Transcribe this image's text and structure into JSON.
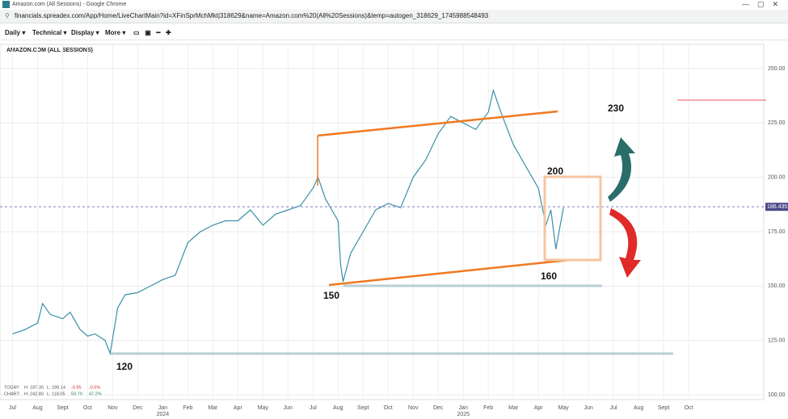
{
  "browser": {
    "window_title": "Amazon.com (All Sessions) - Google Chrome",
    "url": "financials.spreadex.com/App/Home/LiveChartMain?id=XFinSprMchMkt|318629&name=Amazon.com%20(All%20Sessions)&temp=autogen_318629_1745988548493"
  },
  "toolbar": [
    "Daily ▾",
    "Technical ▾",
    "Display ▾",
    "More ▾"
  ],
  "chart_data": {
    "type": "line",
    "title": "AMAZON.COM (ALL SESSIONS)",
    "x": [
      0,
      0.5,
      1,
      1.2,
      1.5,
      2,
      2.3,
      2.7,
      3,
      3.3,
      3.7,
      3.9,
      4.2,
      4.5,
      5,
      5.5,
      6,
      6.5,
      7,
      7.5,
      8,
      8.5,
      9,
      9.5,
      10,
      10.5,
      11,
      11.5,
      12,
      12.2,
      12.5,
      13,
      13.1,
      13.2,
      13.5,
      14,
      14.5,
      15,
      15.5,
      16,
      16.5,
      17,
      17.5,
      18,
      18.5,
      19,
      19.2,
      19.5,
      20,
      20.5,
      21,
      21.3,
      21.5,
      21.7,
      22
    ],
    "series": [
      {
        "name": "AMAZON.COM",
        "color": "#3a8fa8",
        "values": [
          128,
          130,
          133,
          142,
          137,
          135,
          138,
          130,
          127,
          128,
          125,
          119,
          140,
          146,
          147,
          150,
          153,
          155,
          170,
          175,
          178,
          180,
          180,
          185,
          178,
          183,
          185,
          187,
          195,
          200,
          190,
          180,
          160,
          152,
          165,
          175,
          185,
          188,
          186,
          200,
          208,
          220,
          228,
          225,
          222,
          230,
          240,
          230,
          215,
          205,
          195,
          178,
          185,
          167,
          186
        ]
      }
    ],
    "last_price": 186.435,
    "xlim": [
      -0.5,
      30
    ],
    "ylim": [
      97.8,
      261.1
    ],
    "yticks": [
      {
        "value": 100,
        "label": "100.00"
      },
      {
        "value": 125,
        "label": "125.00"
      },
      {
        "value": 150,
        "label": "150.00"
      },
      {
        "value": 175,
        "label": "175.00"
      },
      {
        "value": 200,
        "label": "200.00"
      },
      {
        "value": 225,
        "label": "225.00"
      },
      {
        "value": 250,
        "label": "250.00"
      }
    ],
    "xticks": [
      {
        "value": 0,
        "label": "Jul"
      },
      {
        "value": 1,
        "label": "Aug"
      },
      {
        "value": 2,
        "label": "Sept"
      },
      {
        "value": 3,
        "label": "Oct"
      },
      {
        "value": 4,
        "label": "Nov"
      },
      {
        "value": 5,
        "label": "Dec"
      },
      {
        "value": 6,
        "label": "Jan"
      },
      {
        "value": 7,
        "label": "Feb"
      },
      {
        "value": 8,
        "label": "Mar"
      },
      {
        "value": 9,
        "label": "Apr"
      },
      {
        "value": 10,
        "label": "May"
      },
      {
        "value": 11,
        "label": "Jun"
      },
      {
        "value": 12,
        "label": "Jul"
      },
      {
        "value": 13,
        "label": "Aug"
      },
      {
        "value": 14,
        "label": "Sept"
      },
      {
        "value": 15,
        "label": "Oct"
      },
      {
        "value": 16,
        "label": "Nov"
      },
      {
        "value": 17,
        "label": "Dec"
      },
      {
        "value": 18,
        "label": "Jan"
      },
      {
        "value": 19,
        "label": "Feb"
      },
      {
        "value": 20,
        "label": "Mar"
      },
      {
        "value": 21,
        "label": "Apr"
      },
      {
        "value": 22,
        "label": "May"
      },
      {
        "value": 23,
        "label": "Jun"
      },
      {
        "value": 24,
        "label": "Jul"
      },
      {
        "value": 25,
        "label": "Aug"
      },
      {
        "value": 26,
        "label": "Sept"
      },
      {
        "value": 27,
        "label": "Oct"
      }
    ],
    "year_labels": [
      {
        "value": 6,
        "label": "2024"
      },
      {
        "value": 18,
        "label": "2025"
      }
    ],
    "grid": true,
    "annotations": [
      {
        "text": "230",
        "value": 230
      },
      {
        "text": "200",
        "value": 200
      },
      {
        "text": "160",
        "value": 160
      },
      {
        "text": "150",
        "value": 150
      },
      {
        "text": "120",
        "value": 120
      }
    ],
    "stats": [
      [
        "TODAY:",
        "H: 187.30",
        "L: 186.14",
        "-0.95",
        "-0.5%"
      ],
      [
        "CHART:",
        "H: 242.80",
        "L: 118.05",
        "59.79",
        "47.2%"
      ]
    ]
  }
}
